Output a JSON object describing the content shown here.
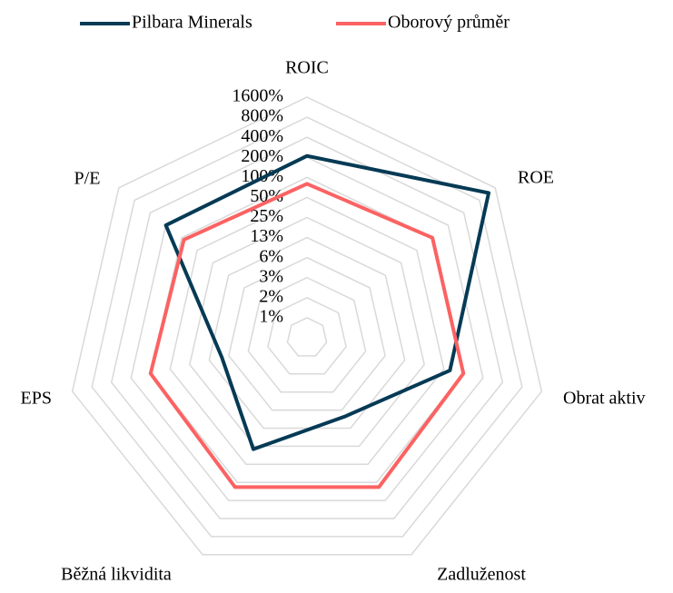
{
  "chart_data": {
    "type": "radar",
    "log_scale": true,
    "grid": true,
    "categories": [
      "ROIC",
      "ROE",
      "Obrat aktiv",
      "Zadluženost",
      "Běžná likvidita",
      "EPS",
      "P/E"
    ],
    "series": [
      {
        "name": "Pilbara Minerals",
        "color": "#053a55",
        "values": [
          210,
          1200,
          62,
          8,
          28,
          8,
          200
        ]
      },
      {
        "name": "Oborový průměr",
        "color": "#fc6262",
        "values": [
          80,
          100,
          100,
          120,
          120,
          100,
          90
        ]
      }
    ],
    "ylim": [
      0.390625,
      1600
    ],
    "yticks": [
      {
        "value": 0.78125,
        "label": "1%"
      },
      {
        "value": 1.5625,
        "label": "2%"
      },
      {
        "value": 3.125,
        "label": "3%"
      },
      {
        "value": 6.25,
        "label": "6%"
      },
      {
        "value": 12.5,
        "label": "13%"
      },
      {
        "value": 25,
        "label": "25%"
      },
      {
        "value": 50,
        "label": "50%"
      },
      {
        "value": 100,
        "label": "100%"
      },
      {
        "value": 200,
        "label": "200%"
      },
      {
        "value": 400,
        "label": "400%"
      },
      {
        "value": 800,
        "label": "800%"
      },
      {
        "value": 1600,
        "label": "1600%"
      }
    ],
    "legend": "top"
  }
}
